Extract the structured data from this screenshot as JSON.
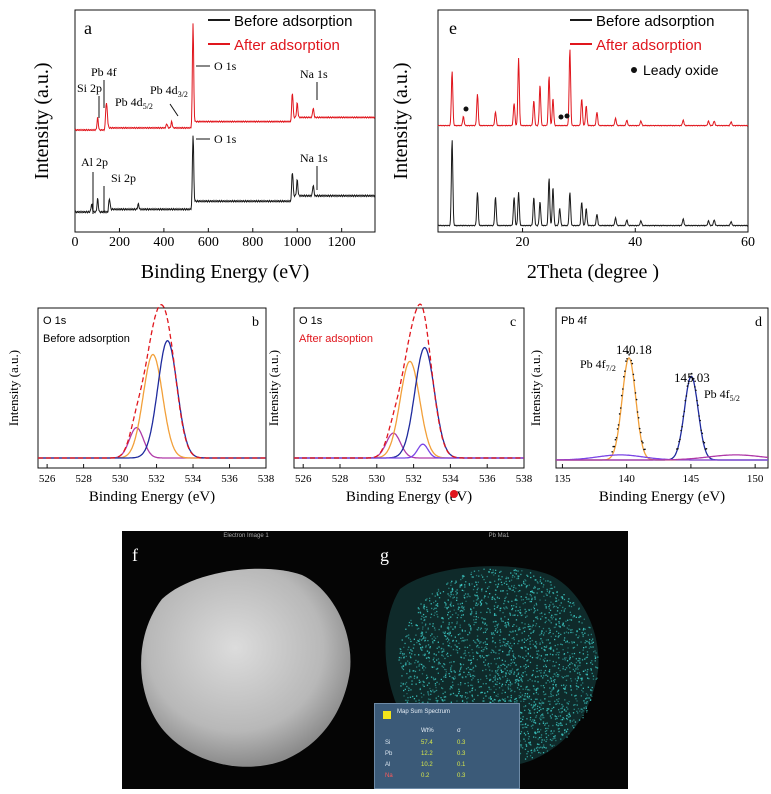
{
  "colors": {
    "before": "#1a1a1a",
    "after": "#e0161d",
    "envelope": "#e0161d",
    "orange": "#f2a03a",
    "navy": "#1f2b9e",
    "purple": "#b03aa8",
    "violet": "#7b46e6",
    "teal": "#3cc7c2"
  },
  "chart_data": [
    {
      "panel": "a",
      "type": "line",
      "title": "",
      "xlabel": "Binding Energy (eV)",
      "ylabel": "Intensity (a.u.)",
      "xlim": [
        0,
        1350
      ],
      "xticks": [
        "0",
        "200",
        "400",
        "600",
        "800",
        "1000",
        "1200"
      ],
      "series": [
        {
          "name": "Before adsorption",
          "color_key": "before",
          "peaks": [
            [
              75,
              6
            ],
            [
              102,
              10
            ],
            [
              155,
              8
            ],
            [
              285,
              4
            ],
            [
              531,
              55
            ],
            [
              978,
              22
            ],
            [
              1000,
              12
            ],
            [
              1072,
              8
            ]
          ]
        },
        {
          "name": "After adsorption",
          "color_key": "after",
          "peaks": [
            [
              102,
              12
            ],
            [
              140,
              22
            ],
            [
              145,
              14
            ],
            [
              413,
              4
            ],
            [
              435,
              6
            ],
            [
              531,
              100
            ],
            [
              978,
              28
            ],
            [
              1000,
              14
            ],
            [
              1072,
              9
            ]
          ]
        }
      ],
      "annotations": [
        "Si 2p",
        "Pb 4f",
        "Pb 4d5/2",
        "Pb 4d3/2",
        "O 1s",
        "Na 1s",
        "Al 2p",
        "Si 2p",
        "O 1s",
        "Na 1s"
      ],
      "legend": [
        {
          "label": "Before adsorption",
          "color_key": "before"
        },
        {
          "label": "After adsorption",
          "color_key": "after"
        }
      ]
    },
    {
      "panel": "e",
      "type": "line",
      "title": "",
      "xlabel": "2Theta (degree )",
      "ylabel": "Intensity (a.u.)",
      "xlim": [
        5,
        60
      ],
      "xticks": [
        "20",
        "40",
        "60"
      ],
      "series": [
        {
          "name": "Before adsorption",
          "color_key": "before",
          "peaks": [
            [
              7.5,
              90
            ],
            [
              12,
              35
            ],
            [
              15.2,
              30
            ],
            [
              18.5,
              30
            ],
            [
              19.3,
              35
            ],
            [
              22,
              30
            ],
            [
              23.1,
              25
            ],
            [
              24.7,
              50
            ],
            [
              25.4,
              40
            ],
            [
              26.6,
              18
            ],
            [
              28.4,
              35
            ],
            [
              30.5,
              25
            ],
            [
              31.3,
              18
            ],
            [
              33.2,
              12
            ],
            [
              36.5,
              8
            ],
            [
              38.5,
              6
            ],
            [
              41,
              5
            ],
            [
              48.5,
              7
            ],
            [
              53,
              5
            ],
            [
              54,
              6
            ],
            [
              57,
              4
            ]
          ]
        },
        {
          "name": "After adsorption",
          "color_key": "after",
          "peaks": [
            [
              7.5,
              60
            ],
            [
              9.5,
              10
            ],
            [
              12,
              35
            ],
            [
              15.2,
              15
            ],
            [
              18.5,
              25
            ],
            [
              19.3,
              75
            ],
            [
              22,
              28
            ],
            [
              23.1,
              45
            ],
            [
              24.7,
              55
            ],
            [
              25.4,
              30
            ],
            [
              28.4,
              85
            ],
            [
              30.5,
              30
            ],
            [
              31.3,
              22
            ],
            [
              33.2,
              15
            ],
            [
              36.5,
              8
            ],
            [
              38.5,
              6
            ],
            [
              41,
              5
            ],
            [
              48.5,
              6
            ],
            [
              53,
              5
            ],
            [
              54,
              5
            ],
            [
              57,
              4
            ]
          ]
        }
      ],
      "marker_label": "Leady oxide",
      "legend": [
        {
          "label": "Before adsorption",
          "color_key": "before"
        },
        {
          "label": "After adsorption",
          "color_key": "after"
        }
      ]
    },
    {
      "panel": "b",
      "type": "line",
      "title": "O 1s",
      "subtitle": "Before adsorption",
      "xlabel": "Binding Energy (eV)",
      "ylabel": "Intensity (a.u.)",
      "xlim": [
        525.5,
        538
      ],
      "xticks": [
        "526",
        "528",
        "530",
        "532",
        "534",
        "536",
        "538"
      ],
      "components": [
        {
          "center": 530.9,
          "height": 0.22,
          "width": 0.55,
          "color_key": "purple"
        },
        {
          "center": 531.8,
          "height": 0.75,
          "width": 0.75,
          "color_key": "orange"
        },
        {
          "center": 532.6,
          "height": 0.85,
          "width": 0.75,
          "color_key": "navy"
        }
      ],
      "envelope_color_key": "envelope"
    },
    {
      "panel": "c",
      "type": "line",
      "title": "O 1s",
      "subtitle": "After adsoption",
      "xlabel": "Binding Energy (eV)",
      "ylabel": "Intensity (a.u.)",
      "xlim": [
        525.5,
        538
      ],
      "xticks": [
        "526",
        "528",
        "530",
        "532",
        "534",
        "536",
        "538"
      ],
      "components": [
        {
          "center": 530.9,
          "height": 0.18,
          "width": 0.55,
          "color_key": "purple"
        },
        {
          "center": 531.8,
          "height": 0.7,
          "width": 0.75,
          "color_key": "orange"
        },
        {
          "center": 532.6,
          "height": 0.8,
          "width": 0.75,
          "color_key": "navy"
        },
        {
          "center": 532.5,
          "height": 0.1,
          "width": 0.4,
          "color_key": "violet"
        }
      ],
      "envelope_color_key": "envelope"
    },
    {
      "panel": "d",
      "type": "line",
      "title": "Pb 4f",
      "xlabel": "Binding Energy (eV)",
      "ylabel": "Intensity (a.u.)",
      "xlim": [
        134.5,
        151
      ],
      "xticks": [
        "135",
        "140",
        "145",
        "150"
      ],
      "components": [
        {
          "center": 140.18,
          "height": 1.0,
          "width": 0.75,
          "color_key": "orange"
        },
        {
          "center": 145.03,
          "height": 0.82,
          "width": 0.75,
          "color_key": "navy"
        },
        {
          "center": 139.5,
          "height": 0.05,
          "width": 2.5,
          "color_key": "violet"
        },
        {
          "center": 148.5,
          "height": 0.05,
          "width": 3.0,
          "color_key": "purple"
        }
      ],
      "labels": [
        "140.18",
        "145.03",
        "Pb 4f7/2",
        "Pb 4f5/2"
      ]
    }
  ],
  "panel_a": {
    "letter": "a",
    "legend_before": "Before adsorption",
    "legend_after": "After adsorption",
    "ann_o1s_top": "O 1s",
    "ann_na1s_top": "Na 1s",
    "ann_pb4f": "Pb 4f",
    "ann_si2p_top": "Si 2p",
    "ann_pb4d": "Pb 4d",
    "ann_pb4d_sub": "5/2",
    "ann_pb4d32": "Pb 4d",
    "ann_pb4d32_sub": "3/2",
    "ann_o1s_bot": "O 1s",
    "ann_na1s_bot": "Na 1s",
    "ann_al2p": "Al 2p",
    "ann_si2p_bot": "Si 2p"
  },
  "panel_e": {
    "letter": "e",
    "legend_before": "Before adsorption",
    "legend_after": "After adsorption",
    "marker_label": "Leady oxide"
  },
  "panel_b": {
    "letter": "b",
    "title": "O 1s",
    "subtitle": "Before adsorption"
  },
  "panel_c": {
    "letter": "c",
    "title": "O 1s",
    "subtitle": "After adsoption"
  },
  "panel_d": {
    "letter": "d",
    "title": "Pb 4f",
    "label_140": "140.18",
    "label_145": "145.03",
    "pb4f_left": "Pb 4f",
    "pb4f_left_sub": "7/2",
    "pb4f_right": "Pb 4f",
    "pb4f_right_sub": "5/2"
  },
  "panel_f": {
    "letter": "f",
    "header": "Electron Image 1"
  },
  "panel_g": {
    "letter": "g",
    "header": "Pb Ma1",
    "table_title": "Map Sum Spectrum",
    "table_headers": [
      "",
      "Wt%",
      "σ"
    ],
    "table_rows": [
      [
        "Si",
        "57.4",
        "0.3"
      ],
      [
        "Pb",
        "12.2",
        "0.3"
      ],
      [
        "Al",
        "10.2",
        "0.1"
      ],
      [
        "Na",
        "0.2",
        "0.3"
      ]
    ]
  }
}
